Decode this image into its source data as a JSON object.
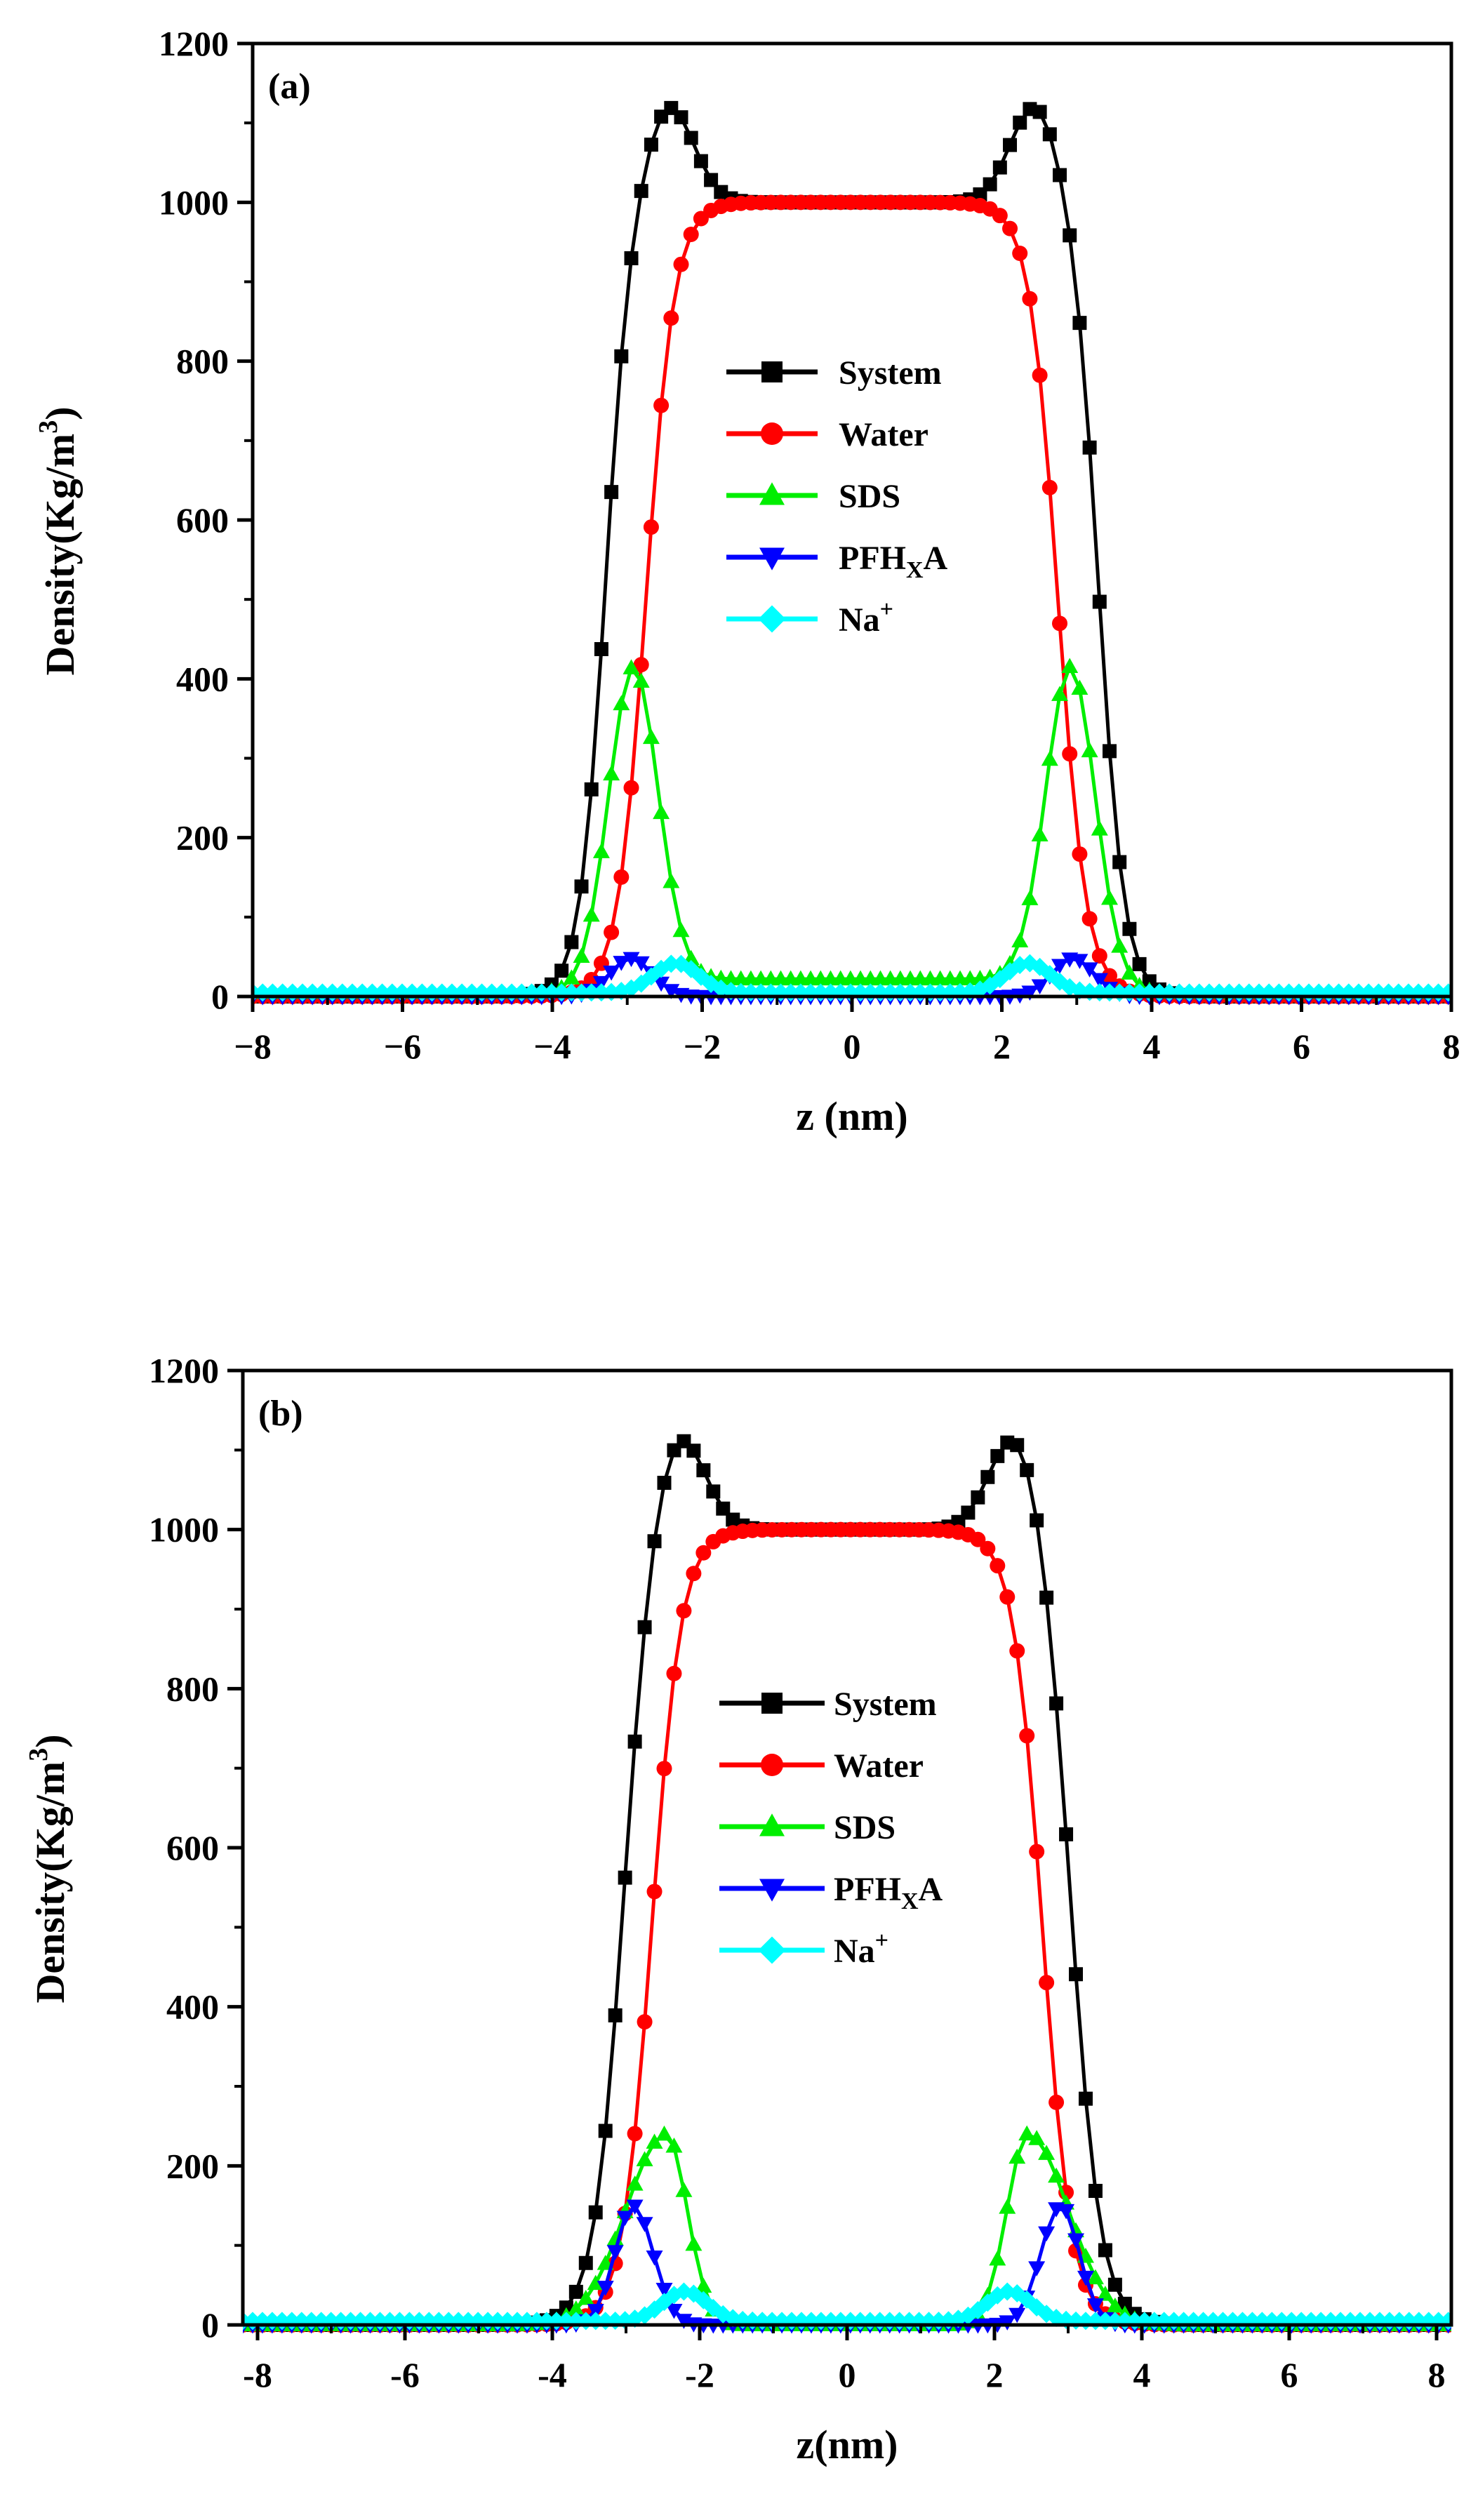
{
  "chart_data": [
    {
      "type": "line",
      "panel_label": "(a)",
      "xlabel": "z (nm)",
      "ylabel_main": "Density(Kg/m",
      "ylabel_sup": "3",
      "ylabel_end": ")",
      "xlim": [
        -8,
        8
      ],
      "ylim": [
        0,
        1200
      ],
      "xticks": [
        -8,
        -6,
        -4,
        -2,
        0,
        2,
        4,
        6,
        8
      ],
      "xtick_labels": [
        "−8",
        "−6",
        "−4",
        "−2",
        "0",
        "2",
        "4",
        "6",
        "8"
      ],
      "yticks": [
        0,
        200,
        400,
        600,
        800,
        1000,
        1200
      ],
      "ytick_labels": [
        "0",
        "200",
        "400",
        "600",
        "800",
        "1000",
        "1200"
      ],
      "legend_position": "center",
      "series": [
        {
          "name": "System",
          "color": "#000000",
          "marker": "square",
          "params": {
            "base": 0,
            "plateau": 1000,
            "edge": 3.3,
            "width": 0.17,
            "peak_h": 125,
            "peak_c": 2.45,
            "peak_w": 0.33
          }
        },
        {
          "name": "Water",
          "color": "#ff0000",
          "marker": "circle",
          "params": {
            "base": 0,
            "plateau": 1000,
            "edge": 2.75,
            "width": 0.19
          }
        },
        {
          "name": "SDS",
          "color": "#00ee00",
          "marker": "triangle-up",
          "params": {
            "base": 22,
            "peak_h": 398,
            "peak_c": 2.92,
            "peak_w_in": 0.33,
            "peak_w_out": 0.33,
            "fade": 3.1,
            "fade_w": 0.18
          }
        },
        {
          "name": "PFH",
          "name_sub": "X",
          "name_end": "A",
          "color": "#0000ff",
          "marker": "triangle-down",
          "params": {
            "base": 0,
            "peak_h": 48,
            "peak_c": 2.95,
            "peak_w_in": 0.28,
            "peak_w_out": 0.28
          }
        },
        {
          "name": "Na",
          "name_sup": "+",
          "color": "#00ffff",
          "marker": "diamond",
          "params": {
            "base": 5,
            "peak_h": 37,
            "peak_c": 2.35,
            "peak_w_in": 0.3,
            "peak_w_out": 0.3
          }
        }
      ]
    },
    {
      "type": "line",
      "panel_label": "(b)",
      "xlabel": "z(nm)",
      "ylabel_main": "Density(Kg/m",
      "ylabel_sup": "3",
      "ylabel_end": ")",
      "xlim": [
        -8.2,
        8.2
      ],
      "ylim": [
        0,
        1200
      ],
      "xticks": [
        -8,
        -6,
        -4,
        -2,
        0,
        2,
        4,
        6,
        8
      ],
      "xtick_labels": [
        "-8",
        "-6",
        "-4",
        "-2",
        "0",
        "2",
        "4",
        "6",
        "8"
      ],
      "yticks": [
        0,
        200,
        400,
        600,
        800,
        1000,
        1200
      ],
      "ytick_labels": [
        "0",
        "200",
        "400",
        "600",
        "800",
        "1000",
        "1200"
      ],
      "legend_position": "center",
      "series": [
        {
          "name": "System",
          "color": "#000000",
          "marker": "square",
          "params": {
            "base": 0,
            "plateau": 1000,
            "edge": 3.05,
            "width": 0.2,
            "peak_h": 130,
            "peak_c": 2.3,
            "peak_w": 0.35
          }
        },
        {
          "name": "Water",
          "color": "#ff0000",
          "marker": "circle",
          "params": {
            "base": 0,
            "plateau": 1000,
            "edge": 2.65,
            "width": 0.2
          }
        },
        {
          "name": "SDS",
          "color": "#00ee00",
          "marker": "triangle-up",
          "params": {
            "base": 0,
            "peak_h": 240,
            "peak_c": 2.45,
            "peak_w_in": 0.28,
            "peak_w_out": 0.55
          }
        },
        {
          "name": "PFH",
          "name_sub": "X",
          "name_end": "A",
          "color": "#0000ff",
          "marker": "triangle-down",
          "params": {
            "base": 0,
            "peak_h": 150,
            "peak_c": 2.9,
            "peak_w_in": 0.27,
            "peak_w_out": 0.25
          }
        },
        {
          "name": "Na",
          "name_sup": "+",
          "color": "#00ffff",
          "marker": "diamond",
          "params": {
            "base": 5,
            "peak_h": 37,
            "peak_c": 2.2,
            "peak_w_in": 0.3,
            "peak_w_out": 0.3
          }
        }
      ]
    }
  ]
}
